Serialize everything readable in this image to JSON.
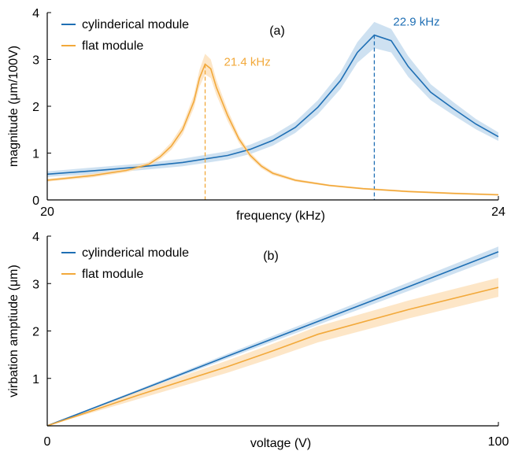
{
  "chart_data": [
    {
      "type": "line",
      "panel_label": "(a)",
      "xlabel": "frequency (kHz)",
      "ylabel": "magnitude (μm/100V)",
      "xlim": [
        20,
        24
      ],
      "ylim": [
        0,
        4
      ],
      "xticks": [
        "20",
        "24"
      ],
      "yticks": [
        "0",
        "1",
        "2",
        "3",
        "4"
      ],
      "legend_position": "top-left",
      "grid": false,
      "series": [
        {
          "name": "cylinderical module",
          "color": "#1f6fb4",
          "band_color": "#c6dcef",
          "x": [
            20.0,
            20.4,
            20.8,
            21.2,
            21.6,
            21.8,
            22.0,
            22.2,
            22.4,
            22.6,
            22.75,
            22.9,
            23.05,
            23.2,
            23.4,
            23.6,
            23.8,
            24.0
          ],
          "y": [
            0.55,
            0.62,
            0.7,
            0.8,
            0.95,
            1.08,
            1.27,
            1.55,
            1.98,
            2.55,
            3.15,
            3.52,
            3.4,
            2.85,
            2.3,
            1.95,
            1.62,
            1.35
          ],
          "band": [
            0.06,
            0.07,
            0.07,
            0.08,
            0.09,
            0.1,
            0.11,
            0.12,
            0.15,
            0.18,
            0.22,
            0.28,
            0.25,
            0.22,
            0.17,
            0.14,
            0.11,
            0.09
          ],
          "peak_label": "22.9 kHz",
          "peak_x": 22.9
        },
        {
          "name": "flat module",
          "color": "#f2a93b",
          "band_color": "#fde2bd",
          "x": [
            20.0,
            20.4,
            20.7,
            20.9,
            21.0,
            21.1,
            21.2,
            21.3,
            21.35,
            21.4,
            21.45,
            21.5,
            21.6,
            21.7,
            21.8,
            21.9,
            22.0,
            22.2,
            22.5,
            22.8,
            23.2,
            23.6,
            24.0
          ],
          "y": [
            0.42,
            0.52,
            0.63,
            0.76,
            0.92,
            1.15,
            1.5,
            2.1,
            2.6,
            2.9,
            2.8,
            2.4,
            1.8,
            1.3,
            0.95,
            0.72,
            0.57,
            0.42,
            0.31,
            0.24,
            0.18,
            0.14,
            0.11
          ],
          "band": [
            0.03,
            0.04,
            0.04,
            0.05,
            0.06,
            0.08,
            0.1,
            0.14,
            0.18,
            0.22,
            0.2,
            0.16,
            0.12,
            0.08,
            0.06,
            0.05,
            0.04,
            0.03,
            0.02,
            0.02,
            0.02,
            0.02,
            0.02
          ],
          "peak_label": "21.4 kHz",
          "peak_x": 21.4
        }
      ]
    },
    {
      "type": "line",
      "panel_label": "(b)",
      "xlabel": "voltage (V)",
      "ylabel": "virbation amptiude (μm)",
      "xlim": [
        0,
        100
      ],
      "ylim": [
        0,
        4
      ],
      "xticks": [
        "0",
        "100"
      ],
      "yticks": [
        "1",
        "2",
        "3",
        "4"
      ],
      "legend_position": "top-left",
      "grid": false,
      "series": [
        {
          "name": "cylinderical module",
          "color": "#1f6fb4",
          "band_color": "#c6dcef",
          "x": [
            0,
            20,
            40,
            60,
            80,
            100
          ],
          "y": [
            0.0,
            0.73,
            1.47,
            2.2,
            2.93,
            3.67
          ],
          "band": [
            0.01,
            0.03,
            0.05,
            0.07,
            0.09,
            0.11
          ]
        },
        {
          "name": "flat module",
          "color": "#f2a93b",
          "band_color": "#fde2bd",
          "x": [
            0,
            20,
            40,
            50,
            60,
            80,
            100
          ],
          "y": [
            0.0,
            0.64,
            1.25,
            1.58,
            1.93,
            2.45,
            2.92
          ],
          "band": [
            0.02,
            0.08,
            0.13,
            0.15,
            0.17,
            0.19,
            0.2
          ]
        }
      ]
    }
  ]
}
